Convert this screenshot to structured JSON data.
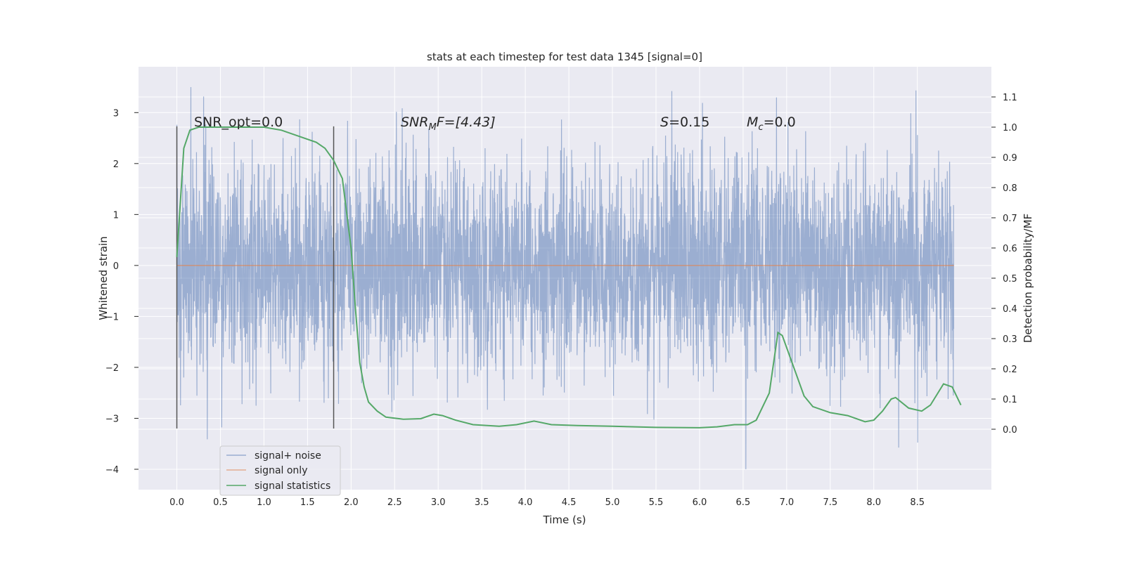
{
  "chart_data": {
    "type": "line",
    "title": "stats at each timestep for test data 1345 [signal=0]",
    "xlabel": "Time (s)",
    "ylabel": "Whitened strain",
    "ylabel_right": "Detection probability/MF",
    "xlim": [
      -0.44,
      9.35
    ],
    "ylim": [
      -4.4,
      3.9
    ],
    "ylim_right": [
      -0.2,
      1.2
    ],
    "xticks": [
      "0.0",
      "0.5",
      "1.0",
      "1.5",
      "2.0",
      "2.5",
      "3.0",
      "3.5",
      "4.0",
      "4.5",
      "5.0",
      "5.5",
      "6.0",
      "6.5",
      "7.0",
      "7.5",
      "8.0",
      "8.5"
    ],
    "yticks": [
      "−4",
      "−3",
      "−2",
      "−1",
      "0",
      "1",
      "2",
      "3"
    ],
    "yticks_right": [
      "0.0",
      "0.1",
      "0.2",
      "0.3",
      "0.4",
      "0.5",
      "0.6",
      "0.7",
      "0.8",
      "0.9",
      "1.0",
      "1.1"
    ],
    "grid": true,
    "legend_position": "lower-left",
    "annotations": {
      "snr_opt": "SNR_opt=0.0",
      "snr_mf_main": "SNR",
      "snr_mf_sub": "M",
      "snr_mf_rest": "F=[4.43]",
      "s_var": "S",
      "s_rest": "=0.15",
      "mc_var": "M",
      "mc_sub": "c",
      "mc_rest": "=0.0"
    },
    "vlines": [
      0.0,
      1.8
    ],
    "vline_range": [
      -3.2,
      2.73
    ],
    "series": [
      {
        "name": "signal+ noise",
        "color": "#4c72b0",
        "axis": "left",
        "description": "white noise, roughly ±1.5 with spikes to ±3.5",
        "t_range": [
          0,
          8.92
        ]
      },
      {
        "name": "signal only",
        "color": "#dd8452",
        "axis": "left",
        "x": [
          0,
          8.92
        ],
        "y": [
          0,
          0
        ]
      },
      {
        "name": "signal statistics",
        "color": "#55a868",
        "axis": "right",
        "x": [
          0,
          0.08,
          0.15,
          0.25,
          0.5,
          1.0,
          1.2,
          1.4,
          1.6,
          1.7,
          1.8,
          1.9,
          2.0,
          2.05,
          2.1,
          2.15,
          2.2,
          2.3,
          2.4,
          2.6,
          2.8,
          2.95,
          3.05,
          3.2,
          3.4,
          3.7,
          3.9,
          4.1,
          4.3,
          4.6,
          5.0,
          5.5,
          6.0,
          6.2,
          6.4,
          6.55,
          6.65,
          6.8,
          6.9,
          6.95,
          7.1,
          7.2,
          7.3,
          7.5,
          7.7,
          7.9,
          8.0,
          8.1,
          8.2,
          8.25,
          8.4,
          8.55,
          8.65,
          8.8,
          8.9,
          9.0
        ],
        "y": [
          0.57,
          0.93,
          0.99,
          1.0,
          1.0,
          1.0,
          0.99,
          0.97,
          0.95,
          0.93,
          0.89,
          0.83,
          0.6,
          0.4,
          0.22,
          0.14,
          0.09,
          0.06,
          0.04,
          0.033,
          0.035,
          0.05,
          0.045,
          0.03,
          0.015,
          0.01,
          0.015,
          0.027,
          0.015,
          0.012,
          0.01,
          0.006,
          0.005,
          0.008,
          0.015,
          0.015,
          0.03,
          0.12,
          0.32,
          0.31,
          0.19,
          0.11,
          0.075,
          0.055,
          0.045,
          0.025,
          0.03,
          0.06,
          0.1,
          0.105,
          0.07,
          0.06,
          0.08,
          0.15,
          0.14,
          0.08
        ]
      }
    ]
  }
}
